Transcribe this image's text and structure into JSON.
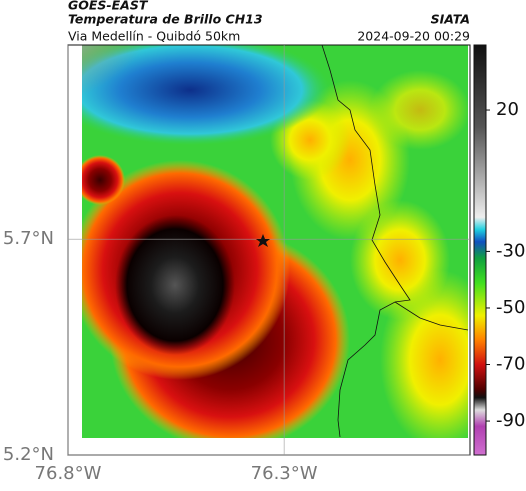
{
  "header": {
    "source": "GOES-EAST",
    "title": "Temperatura de Brillo CH13",
    "subtitle": "Via Medellín - Quibdó 50km",
    "brand": "SIATA",
    "datetime": "2024-09-20 00:29"
  },
  "map": {
    "xlim": [
      -76.8,
      -75.87
    ],
    "ylim": [
      5.2,
      6.15
    ],
    "xticks": [
      {
        "value": -76.8,
        "label": "76.8°W"
      },
      {
        "value": -76.3,
        "label": "76.3°W"
      }
    ],
    "yticks": [
      {
        "value": 5.2,
        "label": "5.2°N"
      },
      {
        "value": 5.7,
        "label": "5.7°N"
      }
    ],
    "grid": true,
    "colorbar": {
      "lim": [
        -102,
        43
      ],
      "ticks": [
        20,
        -30,
        -50,
        -70,
        -90
      ]
    }
  }
}
